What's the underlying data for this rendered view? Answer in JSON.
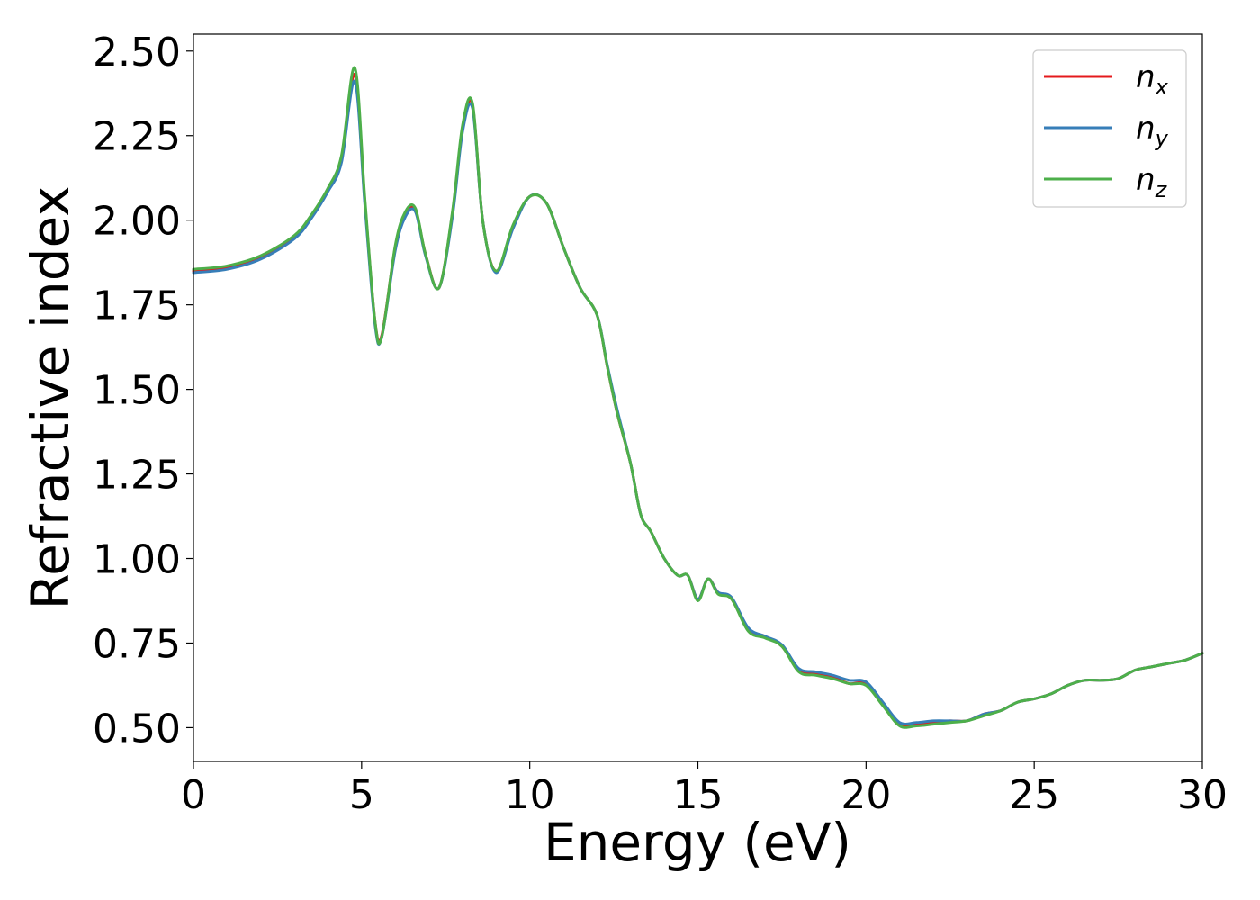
{
  "chart_data": {
    "type": "line",
    "xlabel": "Energy (eV)",
    "ylabel": "Refractive index",
    "xlim": [
      0,
      30
    ],
    "ylim": [
      0.4,
      2.55
    ],
    "xticks": [
      0,
      5,
      10,
      15,
      20,
      25,
      30
    ],
    "xtick_labels": [
      "0",
      "5",
      "10",
      "15",
      "20",
      "25",
      "30"
    ],
    "yticks": [
      0.5,
      0.75,
      1.0,
      1.25,
      1.5,
      1.75,
      2.0,
      2.25,
      2.5
    ],
    "ytick_labels": [
      "0.50",
      "0.75",
      "1.00",
      "1.25",
      "1.50",
      "1.75",
      "2.00",
      "2.25",
      "2.50"
    ],
    "grid": false,
    "legend_position": "top-right",
    "x": [
      0,
      1,
      2,
      3,
      3.5,
      4,
      4.4,
      4.8,
      5.1,
      5.4,
      5.6,
      6.0,
      6.3,
      6.6,
      6.9,
      7.3,
      7.7,
      8.0,
      8.3,
      8.6,
      9.0,
      9.5,
      10.0,
      10.5,
      11.0,
      11.5,
      12.0,
      12.3,
      12.6,
      13.0,
      13.3,
      13.6,
      14.0,
      14.4,
      14.7,
      15.0,
      15.3,
      15.6,
      16.0,
      16.5,
      17.0,
      17.5,
      18.0,
      18.5,
      19.0,
      19.5,
      20.0,
      20.5,
      21.0,
      21.5,
      22.0,
      22.5,
      23.0,
      23.5,
      24.0,
      24.5,
      25.0,
      25.5,
      26.0,
      26.5,
      27.0,
      27.5,
      28.0,
      28.5,
      29.0,
      29.5,
      30.0
    ],
    "series": [
      {
        "name": "n",
        "subscript": "x",
        "color": "#e41a1c",
        "values": [
          1.85,
          1.86,
          1.89,
          1.95,
          2.01,
          2.09,
          2.18,
          2.43,
          2.05,
          1.7,
          1.66,
          1.92,
          2.02,
          2.03,
          1.9,
          1.8,
          2.02,
          2.27,
          2.34,
          2.0,
          1.85,
          1.98,
          2.07,
          2.05,
          1.92,
          1.8,
          1.72,
          1.57,
          1.43,
          1.28,
          1.13,
          1.08,
          1.0,
          0.95,
          0.95,
          0.88,
          0.94,
          0.9,
          0.88,
          0.79,
          0.77,
          0.74,
          0.67,
          0.66,
          0.65,
          0.63,
          0.63,
          0.57,
          0.51,
          0.51,
          0.515,
          0.52,
          0.52,
          0.54,
          0.55,
          0.575,
          0.585,
          0.6,
          0.625,
          0.64,
          0.64,
          0.645,
          0.67,
          0.68,
          0.69,
          0.7,
          0.72
        ]
      },
      {
        "name": "n",
        "subscript": "y",
        "color": "#377eb8",
        "values": [
          1.845,
          1.855,
          1.885,
          1.945,
          2.005,
          2.085,
          2.17,
          2.41,
          2.04,
          1.69,
          1.655,
          1.91,
          2.01,
          2.025,
          1.895,
          1.8,
          2.01,
          2.26,
          2.33,
          2.0,
          1.845,
          1.975,
          2.07,
          2.05,
          1.92,
          1.8,
          1.72,
          1.575,
          1.44,
          1.28,
          1.13,
          1.08,
          1.0,
          0.95,
          0.95,
          0.88,
          0.94,
          0.9,
          0.885,
          0.795,
          0.77,
          0.745,
          0.675,
          0.665,
          0.655,
          0.64,
          0.635,
          0.575,
          0.515,
          0.515,
          0.52,
          0.52,
          0.52,
          0.54,
          0.55,
          0.575,
          0.585,
          0.6,
          0.625,
          0.64,
          0.64,
          0.645,
          0.67,
          0.68,
          0.69,
          0.7,
          0.72
        ]
      },
      {
        "name": "n",
        "subscript": "z",
        "color": "#4daf4a",
        "values": [
          1.855,
          1.865,
          1.895,
          1.955,
          2.015,
          2.095,
          2.19,
          2.45,
          2.06,
          1.7,
          1.655,
          1.925,
          2.025,
          2.035,
          1.9,
          1.8,
          2.025,
          2.28,
          2.345,
          2.0,
          1.85,
          1.985,
          2.07,
          2.05,
          1.92,
          1.8,
          1.72,
          1.57,
          1.43,
          1.28,
          1.13,
          1.08,
          1.0,
          0.95,
          0.95,
          0.875,
          0.94,
          0.895,
          0.88,
          0.785,
          0.765,
          0.74,
          0.665,
          0.655,
          0.645,
          0.63,
          0.625,
          0.565,
          0.505,
          0.505,
          0.51,
          0.515,
          0.52,
          0.535,
          0.55,
          0.575,
          0.585,
          0.6,
          0.625,
          0.64,
          0.64,
          0.645,
          0.67,
          0.68,
          0.69,
          0.7,
          0.72
        ]
      }
    ]
  }
}
